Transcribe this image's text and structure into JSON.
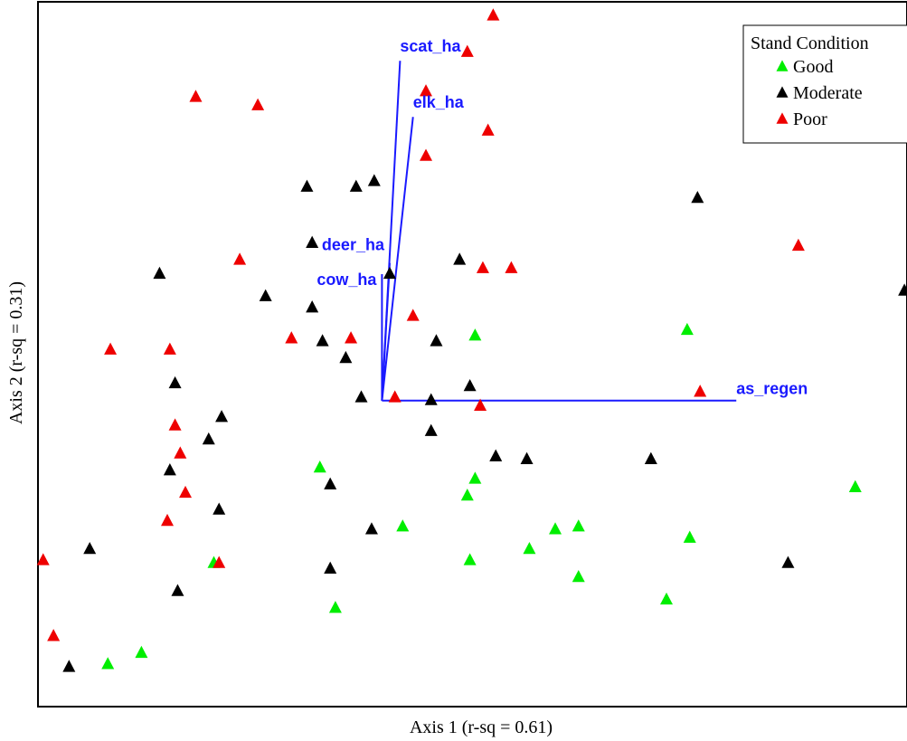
{
  "chart_data": {
    "type": "scatter",
    "xlabel": "Axis 1 (r-sq = 0.61)",
    "ylabel": "Axis 2 (r-sq = 0.31)",
    "grid": false,
    "legend": {
      "title": "Stand Condition",
      "position": "top-right",
      "entries": [
        "Good",
        "Moderate",
        "Poor"
      ]
    },
    "colors": {
      "Good": "#00ee00",
      "Moderate": "#000000",
      "Poor": "#ee0000",
      "vectors": "#1a1aff"
    },
    "marker": "triangle",
    "origin": [
      0,
      0
    ],
    "xlim": [
      -1.33,
      2.03
    ],
    "ylim": [
      -1.09,
      1.42
    ],
    "series": [
      {
        "name": "Good",
        "points": [
          [
            1.18,
            0.25
          ],
          [
            0.36,
            0.23
          ],
          [
            -0.24,
            -0.24
          ],
          [
            0.36,
            -0.28
          ],
          [
            0.33,
            -0.34
          ],
          [
            1.83,
            -0.31
          ],
          [
            0.08,
            -0.45
          ],
          [
            0.67,
            -0.46
          ],
          [
            0.76,
            -0.45
          ],
          [
            0.57,
            -0.53
          ],
          [
            1.19,
            -0.49
          ],
          [
            0.34,
            -0.57
          ],
          [
            -0.65,
            -0.58
          ],
          [
            0.76,
            -0.63
          ],
          [
            1.1,
            -0.71
          ],
          [
            -0.18,
            -0.74
          ],
          [
            -0.93,
            -0.9
          ],
          [
            -1.06,
            -0.94
          ]
        ]
      },
      {
        "name": "Moderate",
        "points": [
          [
            -0.29,
            0.76
          ],
          [
            -0.1,
            0.76
          ],
          [
            -0.03,
            0.78
          ],
          [
            1.22,
            0.72
          ],
          [
            -0.27,
            0.56
          ],
          [
            0.3,
            0.5
          ],
          [
            0.03,
            0.45
          ],
          [
            -0.86,
            0.45
          ],
          [
            -0.45,
            0.37
          ],
          [
            -0.27,
            0.33
          ],
          [
            2.02,
            0.39
          ],
          [
            -0.23,
            0.21
          ],
          [
            0.21,
            0.21
          ],
          [
            -0.14,
            0.15
          ],
          [
            -0.8,
            0.06
          ],
          [
            0.34,
            0.05
          ],
          [
            -0.08,
            0.01
          ],
          [
            0.19,
            0.0
          ],
          [
            -0.62,
            -0.06
          ],
          [
            -0.67,
            -0.14
          ],
          [
            0.19,
            -0.11
          ],
          [
            0.44,
            -0.2
          ],
          [
            0.56,
            -0.21
          ],
          [
            1.04,
            -0.21
          ],
          [
            -0.2,
            -0.3
          ],
          [
            -0.82,
            -0.25
          ],
          [
            -0.63,
            -0.39
          ],
          [
            -0.04,
            -0.46
          ],
          [
            -1.13,
            -0.53
          ],
          [
            -0.2,
            -0.6
          ],
          [
            1.57,
            -0.58
          ],
          [
            -0.79,
            -0.68
          ],
          [
            -1.21,
            -0.95
          ]
        ]
      },
      {
        "name": "Poor",
        "points": [
          [
            0.43,
            1.37
          ],
          [
            0.33,
            1.24
          ],
          [
            0.17,
            1.1
          ],
          [
            -0.72,
            1.08
          ],
          [
            -0.48,
            1.05
          ],
          [
            0.41,
            0.96
          ],
          [
            0.17,
            0.87
          ],
          [
            1.61,
            0.55
          ],
          [
            -0.55,
            0.5
          ],
          [
            0.39,
            0.47
          ],
          [
            0.5,
            0.47
          ],
          [
            0.12,
            0.3
          ],
          [
            -1.05,
            0.18
          ],
          [
            -0.82,
            0.18
          ],
          [
            -0.35,
            0.22
          ],
          [
            -0.12,
            0.22
          ],
          [
            1.23,
            0.03
          ],
          [
            0.05,
            0.01
          ],
          [
            0.38,
            -0.02
          ],
          [
            -0.8,
            -0.09
          ],
          [
            -0.78,
            -0.19
          ],
          [
            -0.76,
            -0.33
          ],
          [
            -0.83,
            -0.43
          ],
          [
            -0.63,
            -0.58
          ],
          [
            -1.31,
            -0.57
          ],
          [
            -1.27,
            -0.84
          ]
        ]
      }
    ],
    "vectors": [
      {
        "name": "scat_ha",
        "x": 0.07,
        "y": 1.21
      },
      {
        "name": "elk_ha",
        "x": 0.12,
        "y": 1.01
      },
      {
        "name": "deer_ha",
        "x": 0.03,
        "y": 0.49
      },
      {
        "name": "cow_ha",
        "x": 0.0,
        "y": 0.45
      },
      {
        "name": "as_regen",
        "x": 1.37,
        "y": 0.0
      }
    ]
  }
}
